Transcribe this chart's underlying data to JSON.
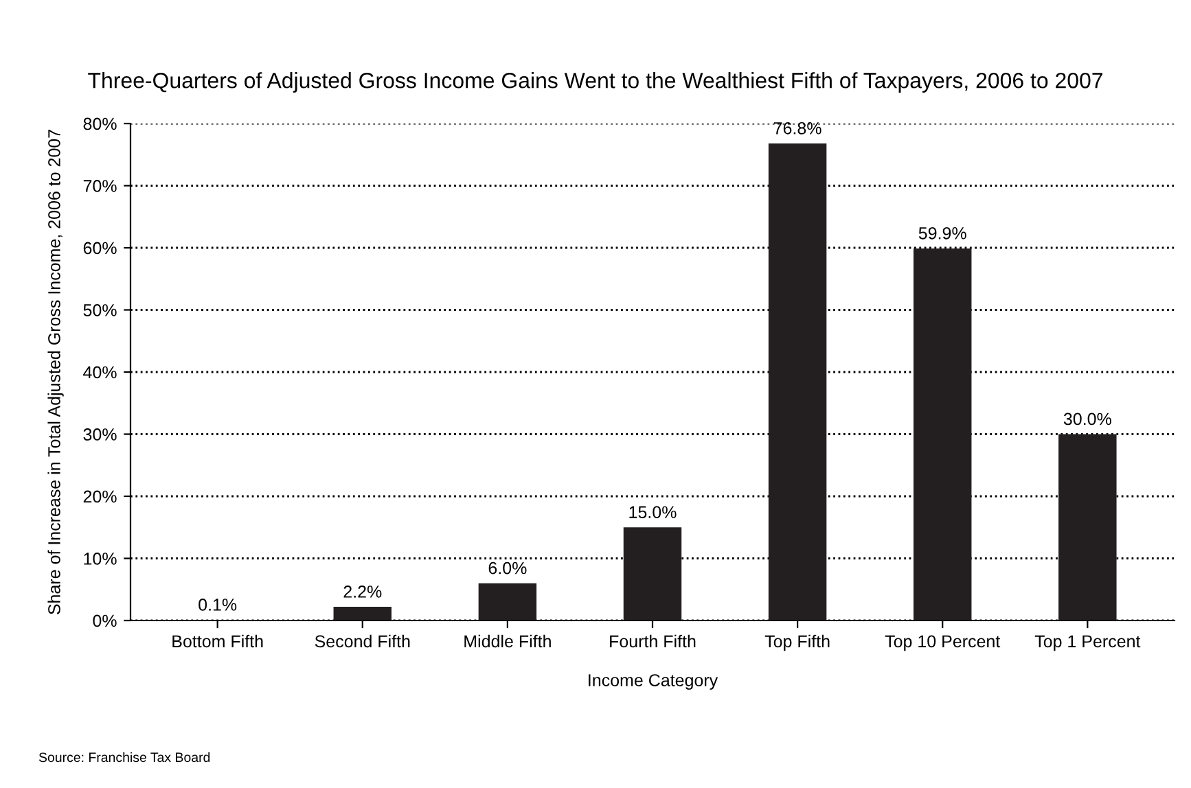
{
  "chart_data": {
    "type": "bar",
    "title": "Three-Quarters of Adjusted Gross Income Gains Went to the Wealthiest Fifth of Taxpayers, 2006 to 2007",
    "xlabel": "Income Category",
    "ylabel": "Share of Increase in Total Adjusted Gross Income, 2006 to 2007",
    "categories": [
      "Bottom Fifth",
      "Second Fifth",
      "Middle Fifth",
      "Fourth Fifth",
      "Top Fifth",
      "Top 10 Percent",
      "Top 1 Percent"
    ],
    "values": [
      0.1,
      2.2,
      6.0,
      15.0,
      76.8,
      59.9,
      30.0
    ],
    "value_labels": [
      "0.1%",
      "2.2%",
      "6.0%",
      "15.0%",
      "76.8%",
      "59.9%",
      "30.0%"
    ],
    "color": "#231f20",
    "ylim": [
      0,
      80
    ],
    "yticks": [
      {
        "value": 0,
        "label": "0%"
      },
      {
        "value": 10,
        "label": "10%"
      },
      {
        "value": 20,
        "label": "20%"
      },
      {
        "value": 30,
        "label": "30%"
      },
      {
        "value": 40,
        "label": "40%"
      },
      {
        "value": 50,
        "label": "50%"
      },
      {
        "value": 60,
        "label": "60%"
      },
      {
        "value": 70,
        "label": "70%"
      },
      {
        "value": 80,
        "label": "80%"
      }
    ],
    "grid": "y",
    "line_style": "dotted",
    "annotations": [
      "Source: Franchise Tax Board"
    ]
  }
}
